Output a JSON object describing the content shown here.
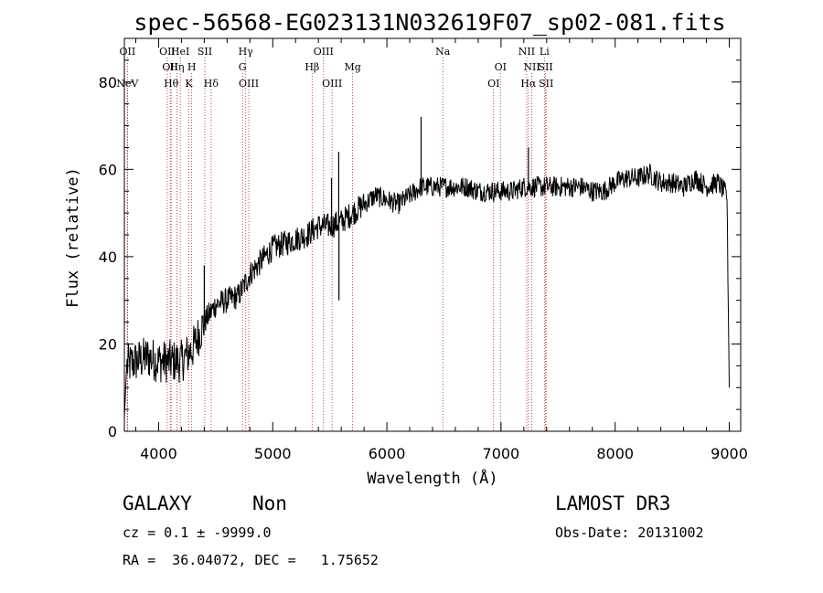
{
  "chart_data": {
    "type": "line",
    "title": "spec-56568-EG023131N032619F07_sp02-081.fits",
    "xlabel": "Wavelength (Å)",
    "ylabel": "Flux (relative)",
    "xlim": [
      3700,
      9100
    ],
    "ylim": [
      0,
      90
    ],
    "xticks": [
      4000,
      5000,
      6000,
      7000,
      8000,
      9000
    ],
    "yticks": [
      0,
      20,
      40,
      60,
      80
    ],
    "spectrum_anchors": [
      [
        3700,
        3
      ],
      [
        3720,
        15
      ],
      [
        3800,
        16
      ],
      [
        3900,
        17
      ],
      [
        4000,
        16
      ],
      [
        4100,
        16
      ],
      [
        4200,
        16
      ],
      [
        4300,
        19
      ],
      [
        4400,
        25
      ],
      [
        4500,
        29
      ],
      [
        4600,
        30
      ],
      [
        4700,
        31
      ],
      [
        4800,
        36
      ],
      [
        4900,
        39
      ],
      [
        5000,
        42
      ],
      [
        5100,
        43
      ],
      [
        5200,
        44
      ],
      [
        5300,
        45
      ],
      [
        5400,
        47
      ],
      [
        5500,
        47
      ],
      [
        5600,
        48
      ],
      [
        5700,
        50
      ],
      [
        5800,
        52
      ],
      [
        5900,
        54
      ],
      [
        6000,
        53
      ],
      [
        6100,
        52
      ],
      [
        6200,
        54
      ],
      [
        6300,
        56
      ],
      [
        6400,
        56
      ],
      [
        6500,
        56
      ],
      [
        6600,
        56
      ],
      [
        6700,
        56
      ],
      [
        6800,
        55
      ],
      [
        6900,
        55
      ],
      [
        7000,
        55
      ],
      [
        7100,
        55
      ],
      [
        7200,
        56
      ],
      [
        7300,
        56
      ],
      [
        7400,
        56
      ],
      [
        7500,
        56
      ],
      [
        7600,
        56
      ],
      [
        7700,
        56
      ],
      [
        7800,
        55
      ],
      [
        7900,
        55
      ],
      [
        8000,
        57
      ],
      [
        8100,
        58
      ],
      [
        8200,
        58
      ],
      [
        8300,
        59
      ],
      [
        8400,
        57
      ],
      [
        8500,
        57
      ],
      [
        8600,
        56
      ],
      [
        8700,
        58
      ],
      [
        8800,
        56
      ],
      [
        8900,
        57
      ],
      [
        8980,
        54
      ],
      [
        9000,
        10
      ]
    ],
    "spikes": [
      [
        5578,
        64
      ],
      [
        5580,
        30
      ],
      [
        5515,
        58
      ],
      [
        6300,
        72
      ],
      [
        7240,
        65
      ],
      [
        4400,
        38
      ]
    ],
    "lines": [
      {
        "name": "NeV",
        "wave": 3726,
        "row": 3
      },
      {
        "name": "OII",
        "wave": 3727,
        "row": 1
      },
      {
        "name": "OII",
        "wave": 4076,
        "row": 1
      },
      {
        "name": "OII",
        "wave": 4102,
        "row": 2
      },
      {
        "name": "Hθ",
        "wave": 4110,
        "row": 3
      },
      {
        "name": "Hη",
        "wave": 4160,
        "row": 2
      },
      {
        "name": "HeI",
        "wave": 4190,
        "row": 1
      },
      {
        "name": "H",
        "wave": 4290,
        "row": 2
      },
      {
        "name": "K",
        "wave": 4265,
        "row": 3
      },
      {
        "name": "SII",
        "wave": 4405,
        "row": 1
      },
      {
        "name": "Hδ",
        "wave": 4460,
        "row": 3
      },
      {
        "name": "Hγ",
        "wave": 4763,
        "row": 1
      },
      {
        "name": "G",
        "wave": 4735,
        "row": 2
      },
      {
        "name": "OIII",
        "wave": 4790,
        "row": 3
      },
      {
        "name": "OIII",
        "wave": 5445,
        "row": 1
      },
      {
        "name": "Hβ",
        "wave": 5345,
        "row": 2
      },
      {
        "name": "OIII",
        "wave": 5520,
        "row": 3
      },
      {
        "name": "Mg",
        "wave": 5700,
        "row": 2
      },
      {
        "name": "Na",
        "wave": 6490,
        "row": 1
      },
      {
        "name": "OI",
        "wave": 6995,
        "row": 2
      },
      {
        "name": "OI",
        "wave": 6935,
        "row": 3
      },
      {
        "name": "NII",
        "wave": 7225,
        "row": 1
      },
      {
        "name": "NII",
        "wave": 7270,
        "row": 2
      },
      {
        "name": "Hα",
        "wave": 7240,
        "row": 3
      },
      {
        "name": "Li",
        "wave": 7380,
        "row": 1
      },
      {
        "name": "SII",
        "wave": 7390,
        "row": 2
      },
      {
        "name": "SII",
        "wave": 7395,
        "row": 3
      }
    ]
  },
  "footer": {
    "class": "GALAXY",
    "subclass": "Non",
    "survey": "LAMOST DR3",
    "cz": "cz = 0.1 ± -9999.0",
    "obs_date": "Obs-Date: 20131002",
    "radec": "RA =  36.04072, DEC =   1.75652"
  }
}
